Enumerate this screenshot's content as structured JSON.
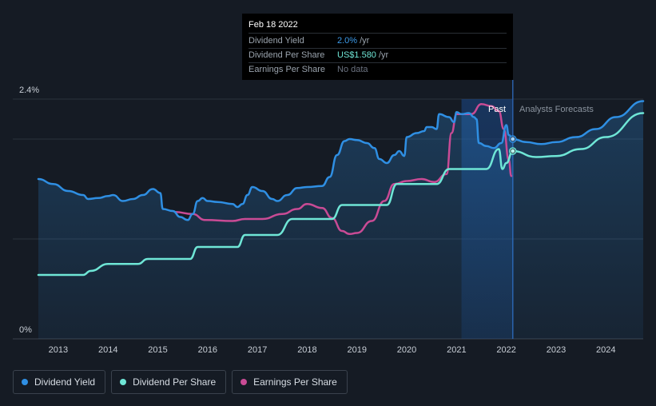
{
  "tooltip": {
    "date": "Feb 18 2022",
    "rows": [
      {
        "label": "Dividend Yield",
        "value": "2.0%",
        "unit": "/yr",
        "color": "#3d9be9"
      },
      {
        "label": "Dividend Per Share",
        "value": "US$1.580",
        "unit": "/yr",
        "color": "#6fe6d6"
      },
      {
        "label": "Earnings Per Share",
        "value": "No data",
        "unit": "",
        "color": "#6b7280"
      }
    ]
  },
  "legend": [
    {
      "label": "Dividend Yield",
      "color": "#2f8fe3"
    },
    {
      "label": "Dividend Per Share",
      "color": "#6fe6d6"
    },
    {
      "label": "Earnings Per Share",
      "color": "#c94b95"
    }
  ],
  "chart_data": {
    "type": "line",
    "y_axis": {
      "top_label": "2.4%",
      "bottom_label": "0%",
      "range": [
        0,
        2.4
      ]
    },
    "x_ticks": [
      "2013",
      "2014",
      "2015",
      "2016",
      "2017",
      "2018",
      "2019",
      "2020",
      "2021",
      "2022",
      "2023",
      "2024"
    ],
    "x_range": [
      2012.6,
      2024.75
    ],
    "regions": {
      "past_label": "Past",
      "forecast_label": "Analysts Forecasts",
      "past_band": [
        2021.1,
        2022.13
      ],
      "today": 2022.13
    },
    "grid": true,
    "series": [
      {
        "name": "Dividend Yield",
        "color": "#2f8fe3",
        "points": [
          [
            2012.6,
            1.6
          ],
          [
            2012.9,
            1.55
          ],
          [
            2013.2,
            1.48
          ],
          [
            2013.5,
            1.44
          ],
          [
            2013.6,
            1.4
          ],
          [
            2013.8,
            1.41
          ],
          [
            2014.0,
            1.43
          ],
          [
            2014.1,
            1.44
          ],
          [
            2014.3,
            1.38
          ],
          [
            2014.5,
            1.4
          ],
          [
            2014.7,
            1.44
          ],
          [
            2014.9,
            1.5
          ],
          [
            2015.05,
            1.46
          ],
          [
            2015.1,
            1.3
          ],
          [
            2015.3,
            1.28
          ],
          [
            2015.45,
            1.22
          ],
          [
            2015.6,
            1.19
          ],
          [
            2015.7,
            1.25
          ],
          [
            2015.8,
            1.38
          ],
          [
            2015.9,
            1.41
          ],
          [
            2016.0,
            1.38
          ],
          [
            2016.2,
            1.37
          ],
          [
            2016.5,
            1.35
          ],
          [
            2016.6,
            1.32
          ],
          [
            2016.7,
            1.35
          ],
          [
            2016.8,
            1.44
          ],
          [
            2016.9,
            1.52
          ],
          [
            2017.1,
            1.48
          ],
          [
            2017.3,
            1.4
          ],
          [
            2017.4,
            1.38
          ],
          [
            2017.6,
            1.44
          ],
          [
            2017.8,
            1.51
          ],
          [
            2018.0,
            1.52
          ],
          [
            2018.3,
            1.53
          ],
          [
            2018.45,
            1.62
          ],
          [
            2018.6,
            1.84
          ],
          [
            2018.75,
            1.98
          ],
          [
            2018.85,
            2.0
          ],
          [
            2019.0,
            1.99
          ],
          [
            2019.2,
            1.96
          ],
          [
            2019.35,
            1.91
          ],
          [
            2019.45,
            1.8
          ],
          [
            2019.6,
            1.76
          ],
          [
            2019.75,
            1.84
          ],
          [
            2019.85,
            1.88
          ],
          [
            2019.95,
            1.83
          ],
          [
            2020.0,
            2.02
          ],
          [
            2020.2,
            2.06
          ],
          [
            2020.35,
            2.08
          ],
          [
            2020.4,
            2.12
          ],
          [
            2020.5,
            2.12
          ],
          [
            2020.6,
            2.1
          ],
          [
            2020.65,
            2.25
          ],
          [
            2020.85,
            2.22
          ],
          [
            2020.95,
            2.17
          ],
          [
            2021.0,
            2.27
          ],
          [
            2021.1,
            2.25
          ],
          [
            2021.25,
            2.26
          ],
          [
            2021.35,
            2.22
          ],
          [
            2021.4,
            2.2
          ],
          [
            2021.45,
            1.96
          ],
          [
            2021.6,
            1.93
          ],
          [
            2021.75,
            1.91
          ],
          [
            2021.9,
            1.96
          ],
          [
            2022.0,
            2.14
          ],
          [
            2022.05,
            2.04
          ],
          [
            2022.13,
            2.0
          ]
        ]
      },
      {
        "name": "Dividend Yield forecast",
        "color": "#2f8fe3",
        "points": [
          [
            2022.13,
            2.0
          ],
          [
            2022.4,
            1.97
          ],
          [
            2022.7,
            1.95
          ],
          [
            2023.0,
            1.97
          ],
          [
            2023.4,
            2.02
          ],
          [
            2023.8,
            2.1
          ],
          [
            2024.2,
            2.22
          ],
          [
            2024.75,
            2.38
          ]
        ]
      },
      {
        "name": "Dividend Per Share",
        "color": "#6fe6d6",
        "points": [
          [
            2012.6,
            0.64
          ],
          [
            2013.5,
            0.64
          ],
          [
            2013.65,
            0.68
          ],
          [
            2014.0,
            0.75
          ],
          [
            2014.6,
            0.75
          ],
          [
            2014.8,
            0.8
          ],
          [
            2015.65,
            0.8
          ],
          [
            2015.8,
            0.92
          ],
          [
            2016.6,
            0.92
          ],
          [
            2016.75,
            1.04
          ],
          [
            2017.4,
            1.04
          ],
          [
            2017.7,
            1.2
          ],
          [
            2018.5,
            1.2
          ],
          [
            2018.7,
            1.34
          ],
          [
            2019.6,
            1.34
          ],
          [
            2019.8,
            1.55
          ],
          [
            2020.6,
            1.55
          ],
          [
            2020.85,
            1.7
          ],
          [
            2021.6,
            1.7
          ],
          [
            2021.85,
            1.9
          ],
          [
            2021.92,
            1.7
          ],
          [
            2022.0,
            1.76
          ],
          [
            2022.13,
            1.88
          ]
        ]
      },
      {
        "name": "Dividend Per Share forecast",
        "color": "#6fe6d6",
        "points": [
          [
            2022.13,
            1.88
          ],
          [
            2022.6,
            1.82
          ],
          [
            2023.0,
            1.83
          ],
          [
            2023.5,
            1.9
          ],
          [
            2024.0,
            2.02
          ],
          [
            2024.75,
            2.26
          ]
        ]
      },
      {
        "name": "Earnings Per Share",
        "color": "#c94b95",
        "points": [
          [
            2015.35,
            1.27
          ],
          [
            2015.7,
            1.25
          ],
          [
            2015.95,
            1.19
          ],
          [
            2016.5,
            1.18
          ],
          [
            2016.75,
            1.2
          ],
          [
            2017.1,
            1.2
          ],
          [
            2017.5,
            1.25
          ],
          [
            2017.8,
            1.3
          ],
          [
            2018.0,
            1.35
          ],
          [
            2018.3,
            1.31
          ],
          [
            2018.5,
            1.21
          ],
          [
            2018.7,
            1.08
          ],
          [
            2018.85,
            1.05
          ],
          [
            2019.0,
            1.06
          ],
          [
            2019.3,
            1.18
          ],
          [
            2019.55,
            1.38
          ],
          [
            2019.75,
            1.55
          ],
          [
            2020.0,
            1.58
          ],
          [
            2020.3,
            1.6
          ],
          [
            2020.55,
            1.57
          ],
          [
            2020.8,
            1.65
          ],
          [
            2020.9,
            2.06
          ],
          [
            2021.0,
            2.25
          ],
          [
            2021.3,
            2.25
          ],
          [
            2021.5,
            2.35
          ],
          [
            2021.7,
            2.33
          ],
          [
            2021.85,
            2.28
          ],
          [
            2021.95,
            2.1
          ],
          [
            2022.05,
            1.79
          ],
          [
            2022.1,
            1.63
          ]
        ]
      }
    ]
  }
}
